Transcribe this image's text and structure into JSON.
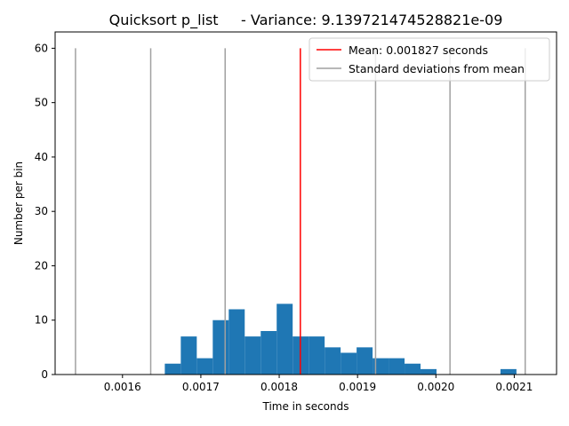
{
  "chart_data": {
    "type": "bar",
    "title": "Quicksort p_list     - Variance: 9.139721474528821e-09",
    "xlabel": "Time in seconds",
    "ylabel": "Number per bin",
    "xlim": [
      0.001514,
      0.002154
    ],
    "ylim": [
      0,
      63
    ],
    "xticks": [
      "0.0016",
      "0.0017",
      "0.0018",
      "0.0019",
      "0.0020",
      "0.0021"
    ],
    "yticks": [
      "0",
      "10",
      "20",
      "30",
      "40",
      "50",
      "60"
    ],
    "grid": false,
    "legend_placement": "upper right",
    "legend": [
      {
        "label": "Mean: 0.001827 seconds",
        "color": "#ff0000"
      },
      {
        "label": "Standard deviations from mean",
        "color": "#a0a0a0"
      }
    ],
    "series": [
      {
        "name": "histogram",
        "color": "#1f77b4",
        "bin_width": 2.04e-05,
        "bins": [
          {
            "start": 0.001654,
            "count": 2
          },
          {
            "start": 0.0016744,
            "count": 7
          },
          {
            "start": 0.0016948,
            "count": 3
          },
          {
            "start": 0.0017152,
            "count": 10
          },
          {
            "start": 0.0017356,
            "count": 12
          },
          {
            "start": 0.001756,
            "count": 7
          },
          {
            "start": 0.0017764,
            "count": 8
          },
          {
            "start": 0.0017968,
            "count": 13
          },
          {
            "start": 0.0018172,
            "count": 7
          },
          {
            "start": 0.0018376,
            "count": 7
          },
          {
            "start": 0.001858,
            "count": 5
          },
          {
            "start": 0.0018784,
            "count": 4
          },
          {
            "start": 0.0018988,
            "count": 5
          },
          {
            "start": 0.0019192,
            "count": 3
          },
          {
            "start": 0.0019396,
            "count": 3
          },
          {
            "start": 0.00196,
            "count": 2
          },
          {
            "start": 0.0019804,
            "count": 1
          },
          {
            "start": 0.0020008,
            "count": 0
          },
          {
            "start": 0.0020212,
            "count": 0
          },
          {
            "start": 0.0020416,
            "count": 0
          },
          {
            "start": 0.002062,
            "count": 0
          },
          {
            "start": 0.0020824,
            "count": 1
          }
        ]
      },
      {
        "name": "Mean: 0.001827 seconds",
        "type": "vline",
        "color": "#ff0000",
        "x": [
          0.001827
        ],
        "height": 60
      },
      {
        "name": "Standard deviations from mean",
        "type": "vline",
        "color": "#a0a0a0",
        "x": [
          0.00154,
          0.001636,
          0.001731,
          0.001923,
          0.002018,
          0.002114
        ],
        "height": 60
      }
    ]
  }
}
